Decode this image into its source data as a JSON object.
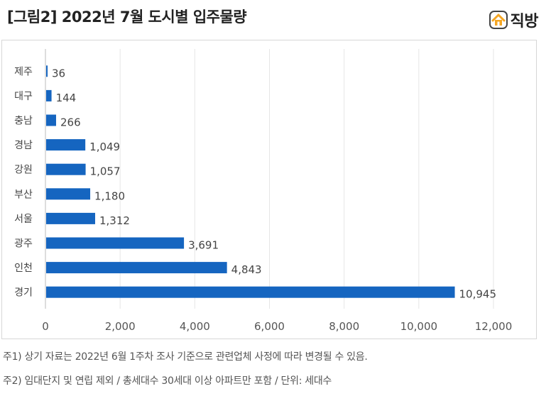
{
  "title": "[그림2] 2022년 7월 도시별 입주물량",
  "brand": {
    "name": "직방",
    "icon": "house-logo-icon",
    "color": "#f5a623"
  },
  "chart_data": {
    "type": "bar",
    "orientation": "horizontal",
    "title": "",
    "xlabel": "",
    "ylabel": "",
    "categories": [
      "제주",
      "대구",
      "충남",
      "경남",
      "강원",
      "부산",
      "서울",
      "광주",
      "인천",
      "경기"
    ],
    "values": [
      36,
      144,
      266,
      1049,
      1057,
      1180,
      1312,
      3691,
      4843,
      10945
    ],
    "value_labels": [
      "36",
      "144",
      "266",
      "1,049",
      "1,057",
      "1,180",
      "1,312",
      "3,691",
      "4,843",
      "10,945"
    ],
    "xlim": [
      0,
      12000
    ],
    "ticks": [
      0,
      2000,
      4000,
      6000,
      8000,
      10000,
      12000
    ],
    "tick_labels": [
      "0",
      "2,000",
      "4,000",
      "6,000",
      "8,000",
      "10,000",
      "12,000"
    ],
    "grid": true,
    "bar_color": "#1565c0",
    "legend": "none"
  },
  "notes": [
    "주1) 상기 자료는 2022년 6월 1주차 조사 기준으로 관련업체 사정에 따라 변경될 수 있음.",
    "주2) 임대단지 및 연립 제외 / 총세대수 30세대 이상 아파트만 포함 / 단위: 세대수"
  ]
}
